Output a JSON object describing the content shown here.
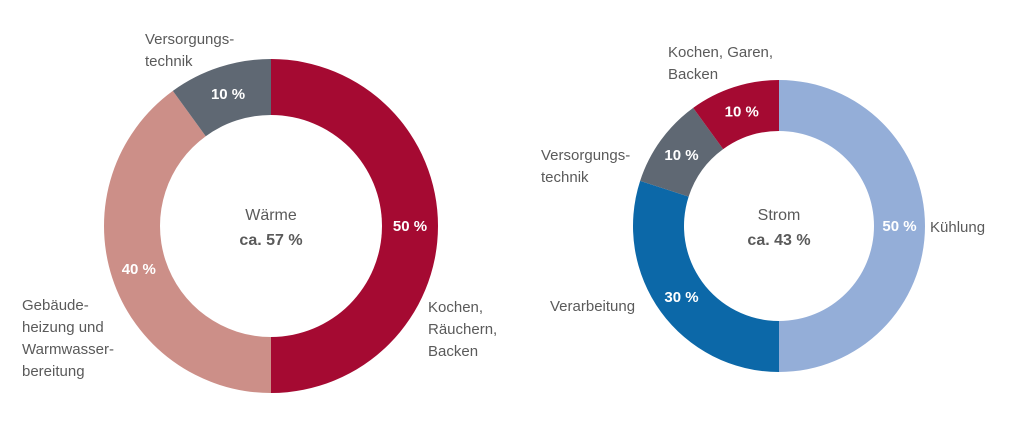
{
  "chart_data": [
    {
      "type": "pie",
      "donut": true,
      "center_title": "Wärme",
      "center_value": "ca. 57 %",
      "slices": [
        {
          "label": [
            "Kochen,",
            "Räuchern,",
            "Backen"
          ],
          "value": 50,
          "value_label": "50 %",
          "color": "#a50a32"
        },
        {
          "label": [
            "Gebäude-",
            "heizung und",
            "Warmwasser-",
            "bereitung"
          ],
          "value": 40,
          "value_label": "40 %",
          "color": "#cc8f88"
        },
        {
          "label": [
            "Versorgungs-",
            "technik"
          ],
          "value": 10,
          "value_label": "10 %",
          "color": "#5f6873"
        }
      ]
    },
    {
      "type": "pie",
      "donut": true,
      "center_title": "Strom",
      "center_value": "ca. 43 %",
      "slices": [
        {
          "label": [
            "Kühlung"
          ],
          "value": 50,
          "value_label": "50 %",
          "color": "#94aed8"
        },
        {
          "label": [
            "Verarbeitung"
          ],
          "value": 30,
          "value_label": "30 %",
          "color": "#0c68a8"
        },
        {
          "label": [
            "Versorgungs-",
            "technik"
          ],
          "value": 10,
          "value_label": "10 %",
          "color": "#5f6873"
        },
        {
          "label": [
            "Kochen, Garen,",
            "Backen"
          ],
          "value": 10,
          "value_label": "10 %",
          "color": "#a50a32"
        }
      ]
    }
  ]
}
